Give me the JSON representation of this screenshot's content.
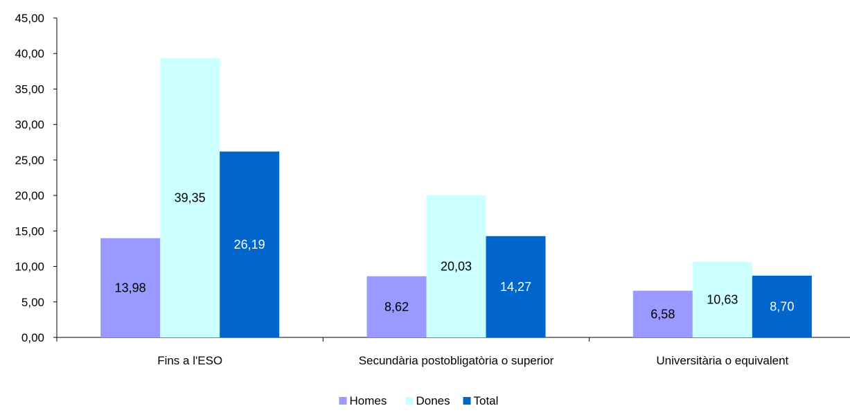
{
  "chart_data": {
    "type": "bar",
    "categories": [
      "Fins a l'ESO",
      "Secundària postobligatòria o superior",
      "Universitària o equivalent"
    ],
    "series": [
      {
        "name": "Homes",
        "values": [
          13.98,
          8.62,
          6.58
        ],
        "labels": [
          "13,98",
          "8,62",
          "6,58"
        ],
        "color": "#9999FF",
        "label_color": "#000000"
      },
      {
        "name": "Dones",
        "values": [
          39.35,
          20.03,
          10.63
        ],
        "labels": [
          "39,35",
          "20,03",
          "10,63"
        ],
        "color": "#CCFFFF",
        "label_color": "#000000"
      },
      {
        "name": "Total",
        "values": [
          26.19,
          14.27,
          8.7
        ],
        "labels": [
          "26,19",
          "14,27",
          "8,70"
        ],
        "color": "#0066CC",
        "label_color": "#FFFFFF"
      }
    ],
    "ylim": [
      0,
      45
    ],
    "yticks": [
      "0,00",
      "5,00",
      "10,00",
      "15,00",
      "20,00",
      "25,00",
      "30,00",
      "35,00",
      "40,00",
      "45,00"
    ],
    "grid": false,
    "legend_position": "bottom"
  }
}
